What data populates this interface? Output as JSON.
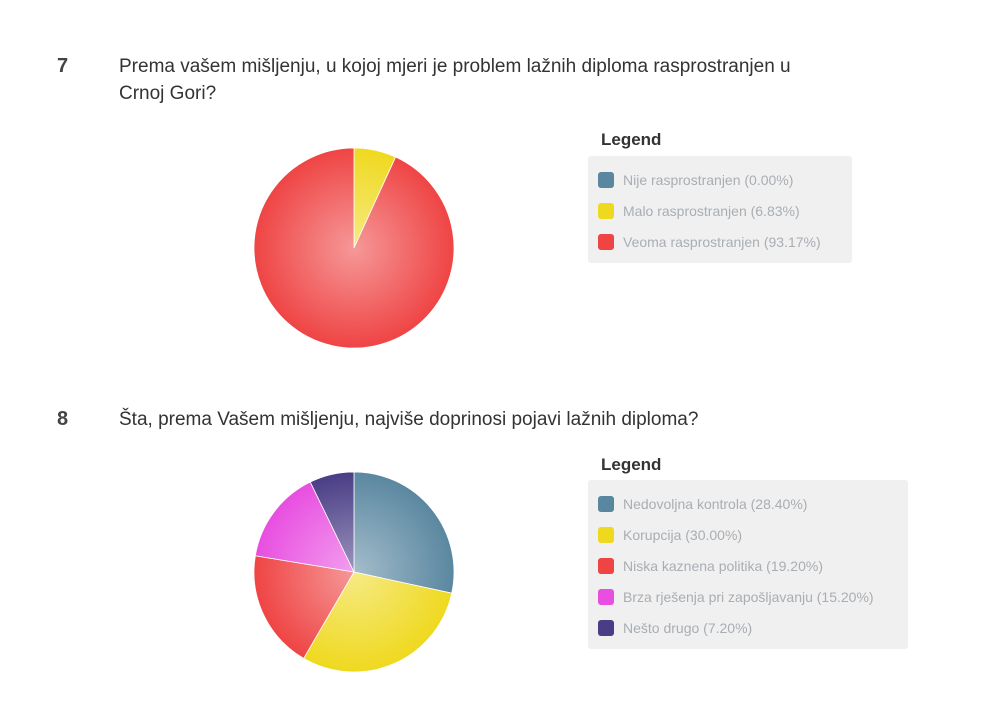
{
  "questions": [
    {
      "number": "7",
      "text": "Prema vašem mišljenju, u kojoj mjeri je problem lažnih diploma rasprostranjen u Crnoj Gori?",
      "legend_title": "Legend"
    },
    {
      "number": "8",
      "text": "Šta, prema Vašem mišljenju, najviše doprinosi pojavi lažnih diploma?",
      "legend_title": "Legend"
    }
  ],
  "chart_data": [
    {
      "type": "pie",
      "slices": [
        {
          "label": "Nije rasprostranjen (0.00%)",
          "value": 0.0,
          "color": "#5a87a0"
        },
        {
          "label": "Malo rasprostranjen (6.83%)",
          "value": 6.83,
          "color": "#efd91f"
        },
        {
          "label": "Veoma rasprostranjen (93.17%)",
          "value": 93.17,
          "color": "#ef4444"
        }
      ]
    },
    {
      "type": "pie",
      "slices": [
        {
          "label": "Nedovoljna kontrola (28.40%)",
          "value": 28.4,
          "color": "#5a87a0"
        },
        {
          "label": "Korupcija (30.00%)",
          "value": 30.0,
          "color": "#efd91f"
        },
        {
          "label": "Niska kaznena politika (19.20%)",
          "value": 19.2,
          "color": "#ef4444"
        },
        {
          "label": "Brza rješenja pri zapošljavanju (15.20%)",
          "value": 15.2,
          "color": "#e84ee0"
        },
        {
          "label": "Nešto drugo (7.20%)",
          "value": 7.2,
          "color": "#4a3d86"
        }
      ]
    }
  ]
}
